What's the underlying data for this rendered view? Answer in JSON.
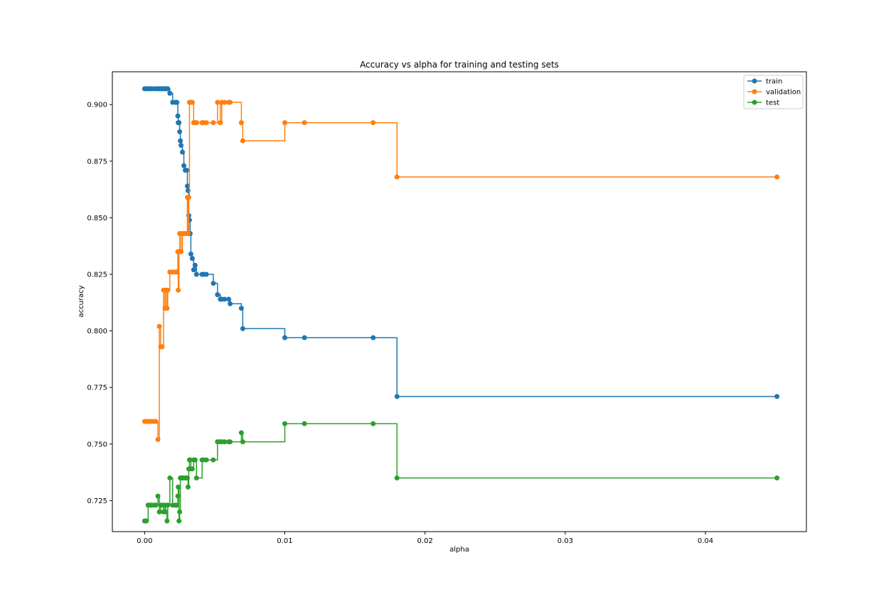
{
  "chart_data": {
    "type": "line",
    "title": "Accuracy vs alpha for training and testing sets",
    "xlabel": "alpha",
    "ylabel": "accuracy",
    "xlim": [
      -0.0023,
      0.0472
    ],
    "ylim": [
      0.7113,
      0.9145
    ],
    "xticks": [
      0.0,
      0.01,
      0.02,
      0.03,
      0.04
    ],
    "xtick_labels": [
      "0.00",
      "0.01",
      "0.02",
      "0.03",
      "0.04"
    ],
    "yticks": [
      0.725,
      0.75,
      0.775,
      0.8,
      0.825,
      0.85,
      0.875,
      0.9
    ],
    "ytick_labels": [
      "0.725",
      "0.750",
      "0.775",
      "0.800",
      "0.825",
      "0.850",
      "0.875",
      "0.900"
    ],
    "grid": false,
    "legend_position": "top-right",
    "drawstyle": "steps-post",
    "x": [
      0.0,
      0.00013,
      0.00025,
      0.0004,
      0.0005,
      0.0007,
      0.0008,
      0.00095,
      0.00105,
      0.00115,
      0.00125,
      0.00135,
      0.00145,
      0.0015,
      0.0016,
      0.00165,
      0.0018,
      0.002,
      0.0022,
      0.0023,
      0.00237,
      0.0024,
      0.00245,
      0.0025,
      0.00255,
      0.0026,
      0.0027,
      0.0028,
      0.0029,
      0.003,
      0.00305,
      0.0031,
      0.00315,
      0.0032,
      0.00325,
      0.0033,
      0.0034,
      0.0035,
      0.0036,
      0.0037,
      0.0041,
      0.0042,
      0.0044,
      0.0049,
      0.0052,
      0.0054,
      0.0055,
      0.0057,
      0.006,
      0.0061,
      0.0069,
      0.007,
      0.01,
      0.0114,
      0.0163,
      0.018,
      0.0451
    ],
    "series": [
      {
        "name": "train",
        "color": "#1f77b4",
        "values": [
          0.907,
          0.907,
          0.907,
          0.907,
          0.907,
          0.907,
          0.907,
          0.907,
          0.907,
          0.907,
          0.907,
          0.907,
          0.907,
          0.907,
          0.907,
          0.907,
          0.905,
          0.901,
          0.901,
          0.901,
          0.895,
          0.892,
          0.892,
          0.888,
          0.884,
          0.882,
          0.879,
          0.873,
          0.871,
          0.871,
          0.864,
          0.862,
          0.851,
          0.849,
          0.843,
          0.834,
          0.832,
          0.827,
          0.829,
          0.825,
          0.825,
          0.825,
          0.825,
          0.821,
          0.816,
          0.814,
          0.814,
          0.814,
          0.814,
          0.812,
          0.81,
          0.801,
          0.797,
          0.797,
          0.797,
          0.771,
          0.771
        ]
      },
      {
        "name": "validation",
        "color": "#ff7f0e",
        "values": [
          0.76,
          0.76,
          0.76,
          0.76,
          0.76,
          0.76,
          0.76,
          0.752,
          0.802,
          0.793,
          0.793,
          0.818,
          0.81,
          0.818,
          0.81,
          0.818,
          0.826,
          0.826,
          0.826,
          0.826,
          0.835,
          0.818,
          0.835,
          0.843,
          0.843,
          0.835,
          0.843,
          0.843,
          0.843,
          0.843,
          0.859,
          0.843,
          0.859,
          0.901,
          0.901,
          0.901,
          0.901,
          0.892,
          0.892,
          0.892,
          0.892,
          0.892,
          0.892,
          0.892,
          0.901,
          0.892,
          0.901,
          0.901,
          0.901,
          0.901,
          0.892,
          0.884,
          0.892,
          0.892,
          0.892,
          0.868,
          0.868
        ]
      },
      {
        "name": "test",
        "color": "#2ca02c",
        "values": [
          0.716,
          0.716,
          0.723,
          0.723,
          0.723,
          0.723,
          0.723,
          0.727,
          0.72,
          0.723,
          0.723,
          0.72,
          0.723,
          0.72,
          0.716,
          0.723,
          0.735,
          0.723,
          0.723,
          0.723,
          0.727,
          0.731,
          0.716,
          0.72,
          0.735,
          0.735,
          0.735,
          0.735,
          0.735,
          0.735,
          0.735,
          0.731,
          0.739,
          0.743,
          0.743,
          0.739,
          0.739,
          0.743,
          0.743,
          0.735,
          0.743,
          0.743,
          0.743,
          0.743,
          0.751,
          0.751,
          0.751,
          0.751,
          0.751,
          0.751,
          0.755,
          0.751,
          0.759,
          0.759,
          0.759,
          0.735,
          0.735
        ]
      }
    ]
  }
}
